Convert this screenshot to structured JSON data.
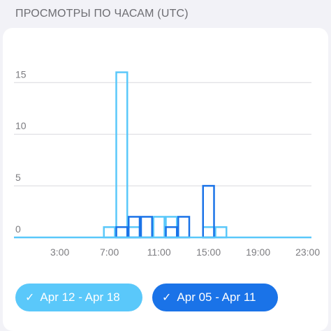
{
  "header": {
    "title": "ПРОСМОТРЫ ПО ЧАСАМ (UTC)"
  },
  "chart_data": {
    "type": "bar",
    "title": "ПРОСМОТРЫ ПО ЧАСАМ (UTC)",
    "xlabel": "",
    "ylabel": "",
    "x": [
      0,
      1,
      2,
      3,
      4,
      5,
      6,
      7,
      8,
      9,
      10,
      11,
      12,
      13,
      14,
      15,
      16,
      17,
      18,
      19,
      20,
      21,
      22,
      23
    ],
    "x_tick_labels": [
      "3:00",
      "7:00",
      "11:00",
      "15:00",
      "19:00",
      "23:00"
    ],
    "x_tick_values": [
      3,
      7,
      11,
      15,
      19,
      23
    ],
    "y_tick_labels": [
      "0",
      "5",
      "10",
      "15"
    ],
    "y_tick_values": [
      0,
      5,
      10,
      15
    ],
    "ylim": [
      0,
      17
    ],
    "grid": true,
    "legend_position": "bottom",
    "series": [
      {
        "name": "Apr 12 - Apr 18",
        "color": "#5ac8fa",
        "values": [
          0,
          0,
          0,
          0,
          0,
          0,
          0,
          1,
          16,
          1,
          0,
          2,
          2,
          0,
          0,
          1,
          1,
          0,
          0,
          0,
          0,
          0,
          0,
          0
        ]
      },
      {
        "name": "Apr 05 - Apr 11",
        "color": "#1a73e8",
        "values": [
          0,
          0,
          0,
          0,
          0,
          0,
          0,
          0,
          1,
          2,
          2,
          0,
          1,
          2,
          0,
          5,
          0,
          0,
          0,
          0,
          0,
          0,
          0,
          0
        ]
      }
    ]
  },
  "legend": {
    "check_symbol": "✓",
    "items": [
      {
        "label": "Apr 12 - Apr 18"
      },
      {
        "label": "Apr 05 - Apr 11"
      }
    ]
  }
}
